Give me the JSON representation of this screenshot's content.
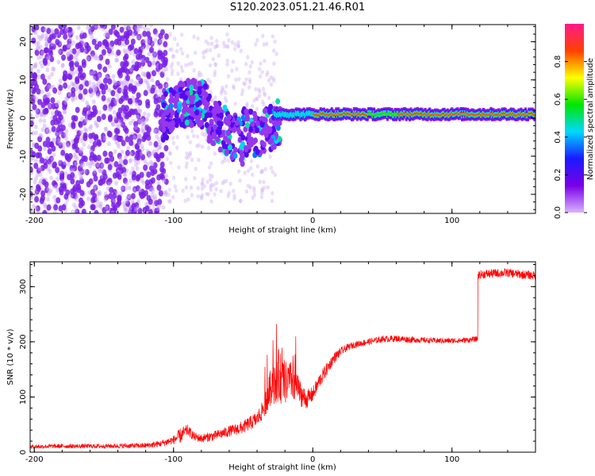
{
  "title": "S120.2023.051.21.46.R01",
  "chart_data": [
    {
      "type": "heatmap",
      "title": "S120.2023.051.21.46.R01",
      "xlabel": "Height of straight line (km)",
      "ylabel": "Frequency (Hz)",
      "xlim": [
        -203,
        160
      ],
      "ylim": [
        -25,
        24.5
      ],
      "x_ticks": [
        -200,
        -100,
        0,
        100
      ],
      "y_ticks": [
        -20,
        -10,
        0,
        10,
        20
      ],
      "colorbar": {
        "label": "Normalized spectral amplitude",
        "range": [
          0,
          1
        ],
        "ticks": [
          0.0,
          0.2,
          0.4,
          0.6,
          0.8
        ],
        "colormap": "rainbow",
        "colors": [
          "#d9b3ff",
          "#7a00e6",
          "#1a1aff",
          "#00d9ff",
          "#00e600",
          "#ffff00",
          "#ff4000",
          "#ff1a8c"
        ]
      },
      "regions": [
        {
          "x_range": [
            -203,
            -110
          ],
          "freq_range": [
            -25,
            24.5
          ],
          "description_level": "sparse noise, amplitude ~0.1"
        },
        {
          "x_range": [
            -110,
            -25
          ],
          "freq_range": [
            -8,
            8
          ],
          "description_level": "scattered tones, amplitude ~0.2-0.5"
        },
        {
          "x_range": [
            -25,
            160
          ],
          "freq_range": [
            0,
            2
          ],
          "description_level": "narrow tone ~1 Hz, amplitude up to 1.0"
        }
      ]
    },
    {
      "type": "line",
      "xlabel": "Height of straight line (km)",
      "ylabel": "SNR (10 * v/v)",
      "xlim": [
        -203,
        160
      ],
      "ylim": [
        0,
        345
      ],
      "x_ticks": [
        -200,
        -100,
        0,
        100
      ],
      "y_ticks": [
        0,
        100,
        200,
        300
      ],
      "series": [
        {
          "color": "#ff0000",
          "x": [
            -203,
            -180,
            -150,
            -120,
            -110,
            -100,
            -95,
            -90,
            -85,
            -80,
            -70,
            -60,
            -50,
            -40,
            -35,
            -30,
            -25,
            -20,
            -15,
            -10,
            -5,
            0,
            5,
            10,
            15,
            20,
            25,
            30,
            40,
            50,
            60,
            70,
            80,
            90,
            100,
            110,
            118,
            119,
            120,
            130,
            140,
            150,
            160
          ],
          "y": [
            10,
            11,
            11,
            12,
            15,
            22,
            30,
            40,
            28,
            25,
            30,
            38,
            45,
            60,
            80,
            120,
            140,
            125,
            130,
            110,
            95,
            105,
            130,
            150,
            170,
            182,
            190,
            195,
            200,
            205,
            206,
            204,
            203,
            202,
            202,
            203,
            205,
            320,
            322,
            324,
            325,
            322,
            320
          ],
          "noise": [
            4,
            4,
            4,
            5,
            6,
            8,
            14,
            10,
            8,
            8,
            9,
            10,
            12,
            14,
            18,
            35,
            50,
            40,
            35,
            25,
            18,
            14,
            14,
            12,
            10,
            8,
            6,
            6,
            6,
            6,
            6,
            6,
            5,
            5,
            5,
            5,
            5,
            8,
            8,
            8,
            8,
            8,
            8
          ]
        }
      ]
    }
  ]
}
